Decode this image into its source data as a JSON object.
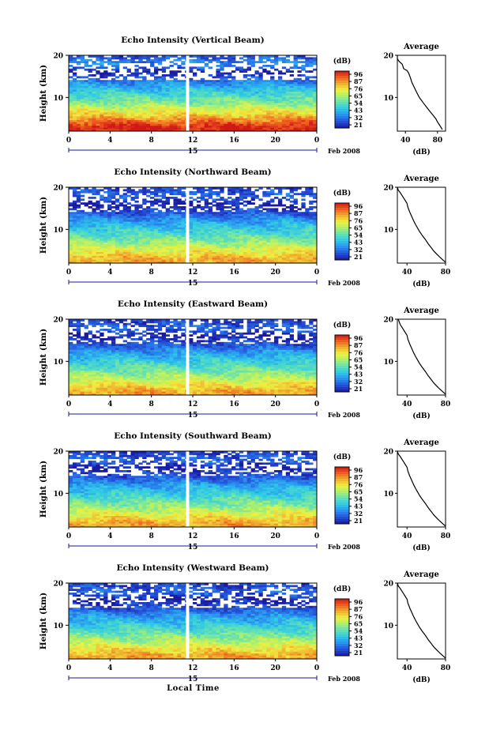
{
  "figure": {
    "date_label": "Feb 2008",
    "day_label": "15",
    "xlabel_bottom": "Local Time",
    "colorbar_unit": "(dB)",
    "colorbar_ticks": [
      "96",
      "87",
      "76",
      "65",
      "54",
      "43",
      "32",
      "21"
    ],
    "colors": {
      "scale": [
        "#1a1aa0",
        "#2450d8",
        "#2a8ef0",
        "#2ec8e8",
        "#5fe0b8",
        "#a8f070",
        "#f0f040",
        "#f0b030",
        "#f06020",
        "#d01818"
      ],
      "axis": "#000000",
      "time_axis_accent": "#1a1a9a"
    }
  },
  "panels": [
    {
      "title": "Echo Intensity (Vertical Beam)",
      "ylabel": "Height (km)",
      "avg_title": "Average",
      "avg_xlabel": "(dB)"
    },
    {
      "title": "Echo Intensity (Northward Beam)",
      "ylabel": "Height (km)",
      "avg_title": "Average",
      "avg_xlabel": "(dB)"
    },
    {
      "title": "Echo Intensity (Eastward Beam)",
      "ylabel": "Height (km)",
      "avg_title": "Average",
      "avg_xlabel": "(dB)"
    },
    {
      "title": "Echo Intensity (Southward Beam)",
      "ylabel": "Height (km)",
      "avg_title": "Average",
      "avg_xlabel": "(dB)"
    },
    {
      "title": "Echo Intensity (Westward Beam)",
      "ylabel": "Height (km)",
      "avg_title": "Average",
      "avg_xlabel": "(dB)"
    }
  ],
  "chart_data": [
    {
      "type": "heatmap",
      "title": "Echo Intensity (Vertical Beam)",
      "xlabel": "",
      "ylabel": "Height (km)",
      "x_ticks": [
        "0",
        "4",
        "8",
        "12",
        "16",
        "20",
        "0"
      ],
      "y_ticks": [
        "10",
        "20"
      ],
      "xlim": [
        0,
        24
      ],
      "ylim": [
        2,
        20
      ],
      "colorbar": {
        "unit": "(dB)",
        "ticks": [
          96,
          87,
          76,
          65,
          54,
          43,
          32,
          21
        ]
      },
      "data_gap_hour": 11.5,
      "profile_by_height": [
        {
          "h": 3,
          "dB": 95
        },
        {
          "h": 6,
          "dB": 75
        },
        {
          "h": 9,
          "dB": 58
        },
        {
          "h": 12,
          "dB": 45
        },
        {
          "h": 14,
          "dB": 35
        },
        {
          "h": 16,
          "dB": 22
        },
        {
          "h": 18,
          "dB": 38
        },
        {
          "h": 20,
          "dB": 28
        }
      ]
    },
    {
      "type": "line",
      "title": "Average",
      "xlabel": "(dB)",
      "ylabel": "",
      "x_ticks": [
        "40",
        "80"
      ],
      "y_ticks": [
        "10",
        "20"
      ],
      "xlim": [
        30,
        90
      ],
      "ylim": [
        2,
        20
      ],
      "series": [
        {
          "x": [
            28,
            30,
            32,
            36,
            38,
            42,
            44,
            46,
            48,
            50,
            52,
            54,
            56,
            58,
            62,
            66,
            70,
            74,
            78,
            80,
            82,
            84,
            86
          ],
          "y": [
            20,
            19.2,
            18.6,
            17.9,
            16.8,
            16.4,
            15.8,
            14.8,
            13.6,
            12.8,
            12.0,
            11.2,
            10.5,
            9.8,
            8.8,
            7.8,
            6.8,
            5.9,
            4.9,
            4.2,
            3.6,
            3.0,
            2.4
          ]
        }
      ]
    },
    {
      "type": "heatmap",
      "title": "Echo Intensity (Northward Beam)",
      "xlabel": "",
      "ylabel": "Height (km)",
      "x_ticks": [
        "0",
        "4",
        "8",
        "12",
        "16",
        "20",
        "0"
      ],
      "y_ticks": [
        "10",
        "20"
      ],
      "xlim": [
        0,
        24
      ],
      "ylim": [
        2,
        20
      ],
      "colorbar": {
        "unit": "(dB)",
        "ticks": [
          96,
          87,
          76,
          65,
          54,
          43,
          32,
          21
        ]
      },
      "data_gap_hour": 11.5,
      "profile_by_height": [
        {
          "h": 3,
          "dB": 80
        },
        {
          "h": 6,
          "dB": 65
        },
        {
          "h": 9,
          "dB": 52
        },
        {
          "h": 12,
          "dB": 40
        },
        {
          "h": 14,
          "dB": 30
        },
        {
          "h": 16,
          "dB": 22
        },
        {
          "h": 18,
          "dB": 32
        },
        {
          "h": 20,
          "dB": 26
        }
      ]
    },
    {
      "type": "line",
      "title": "Average",
      "xlabel": "(dB)",
      "ylabel": "",
      "x_ticks": [
        "40",
        "80"
      ],
      "y_ticks": [
        "10",
        "20"
      ],
      "xlim": [
        30,
        80
      ],
      "ylim": [
        2,
        20
      ],
      "series": [
        {
          "x": [
            30,
            31,
            33,
            35,
            37,
            38,
            40,
            41,
            43,
            45,
            47,
            49,
            51,
            53,
            56,
            59,
            62,
            65,
            68,
            71,
            74,
            77,
            80
          ],
          "y": [
            20,
            19.3,
            18.7,
            18.0,
            17.3,
            16.9,
            16.2,
            15.2,
            14.0,
            13.0,
            12.0,
            11.1,
            10.3,
            9.5,
            8.5,
            7.6,
            6.6,
            5.7,
            4.8,
            4.1,
            3.4,
            2.8,
            2.2
          ]
        }
      ]
    },
    {
      "type": "heatmap",
      "title": "Echo Intensity (Eastward Beam)",
      "xlabel": "",
      "ylabel": "Height (km)",
      "x_ticks": [
        "0",
        "4",
        "8",
        "12",
        "16",
        "20",
        "0"
      ],
      "y_ticks": [
        "10",
        "20"
      ],
      "xlim": [
        0,
        24
      ],
      "ylim": [
        2,
        20
      ],
      "colorbar": {
        "unit": "(dB)",
        "ticks": [
          96,
          87,
          76,
          65,
          54,
          43,
          32,
          21
        ]
      },
      "data_gap_hour": 11.5,
      "profile_by_height": [
        {
          "h": 3,
          "dB": 80
        },
        {
          "h": 6,
          "dB": 65
        },
        {
          "h": 9,
          "dB": 52
        },
        {
          "h": 12,
          "dB": 40
        },
        {
          "h": 14,
          "dB": 30
        },
        {
          "h": 16,
          "dB": 22
        },
        {
          "h": 18,
          "dB": 32
        },
        {
          "h": 20,
          "dB": 26
        }
      ]
    },
    {
      "type": "line",
      "title": "Average",
      "xlabel": "(dB)",
      "ylabel": "",
      "x_ticks": [
        "40",
        "80"
      ],
      "y_ticks": [
        "10",
        "20"
      ],
      "xlim": [
        30,
        80
      ],
      "ylim": [
        2,
        20
      ],
      "series": [
        {
          "x": [
            31,
            32,
            33,
            35,
            37,
            38,
            40,
            41,
            43,
            45,
            47,
            49,
            51,
            53,
            56,
            59,
            62,
            65,
            68,
            71,
            74,
            77,
            80
          ],
          "y": [
            20,
            19.3,
            18.7,
            18.0,
            17.3,
            16.9,
            16.2,
            15.2,
            14.0,
            13.0,
            12.0,
            11.1,
            10.3,
            9.5,
            8.5,
            7.6,
            6.6,
            5.7,
            4.8,
            4.1,
            3.4,
            2.8,
            2.2
          ]
        }
      ]
    },
    {
      "type": "heatmap",
      "title": "Echo Intensity (Southward Beam)",
      "xlabel": "",
      "ylabel": "Height (km)",
      "x_ticks": [
        "0",
        "4",
        "8",
        "12",
        "16",
        "20",
        "0"
      ],
      "y_ticks": [
        "10",
        "20"
      ],
      "xlim": [
        0,
        24
      ],
      "ylim": [
        2,
        20
      ],
      "colorbar": {
        "unit": "(dB)",
        "ticks": [
          96,
          87,
          76,
          65,
          54,
          43,
          32,
          21
        ]
      },
      "data_gap_hour": 11.5,
      "profile_by_height": [
        {
          "h": 3,
          "dB": 80
        },
        {
          "h": 6,
          "dB": 65
        },
        {
          "h": 9,
          "dB": 52
        },
        {
          "h": 12,
          "dB": 40
        },
        {
          "h": 14,
          "dB": 30
        },
        {
          "h": 16,
          "dB": 22
        },
        {
          "h": 18,
          "dB": 32
        },
        {
          "h": 20,
          "dB": 26
        }
      ]
    },
    {
      "type": "line",
      "title": "Average",
      "xlabel": "(dB)",
      "ylabel": "",
      "x_ticks": [
        "40",
        "80"
      ],
      "y_ticks": [
        "10",
        "20"
      ],
      "xlim": [
        30,
        80
      ],
      "ylim": [
        2,
        20
      ],
      "series": [
        {
          "x": [
            30,
            31,
            33,
            35,
            37,
            38,
            40,
            41,
            43,
            45,
            47,
            49,
            51,
            53,
            56,
            59,
            62,
            65,
            68,
            71,
            74,
            77,
            80
          ],
          "y": [
            20,
            19.3,
            18.7,
            18.0,
            17.3,
            16.9,
            16.2,
            15.2,
            14.0,
            13.0,
            12.0,
            11.1,
            10.3,
            9.5,
            8.5,
            7.6,
            6.6,
            5.7,
            4.8,
            4.1,
            3.4,
            2.8,
            2.2
          ]
        }
      ]
    },
    {
      "type": "heatmap",
      "title": "Echo Intensity (Westward Beam)",
      "xlabel": "Local Time",
      "ylabel": "Height (km)",
      "x_ticks": [
        "0",
        "4",
        "8",
        "12",
        "16",
        "20",
        "0"
      ],
      "y_ticks": [
        "10",
        "20"
      ],
      "xlim": [
        0,
        24
      ],
      "ylim": [
        2,
        20
      ],
      "colorbar": {
        "unit": "(dB)",
        "ticks": [
          96,
          87,
          76,
          65,
          54,
          43,
          32,
          21
        ]
      },
      "data_gap_hour": 11.5,
      "profile_by_height": [
        {
          "h": 3,
          "dB": 80
        },
        {
          "h": 6,
          "dB": 65
        },
        {
          "h": 9,
          "dB": 52
        },
        {
          "h": 12,
          "dB": 40
        },
        {
          "h": 14,
          "dB": 30
        },
        {
          "h": 16,
          "dB": 22
        },
        {
          "h": 18,
          "dB": 32
        },
        {
          "h": 20,
          "dB": 26
        }
      ]
    },
    {
      "type": "line",
      "title": "Average",
      "xlabel": "(dB)",
      "ylabel": "",
      "x_ticks": [
        "40",
        "80"
      ],
      "y_ticks": [
        "10",
        "20"
      ],
      "xlim": [
        30,
        80
      ],
      "ylim": [
        2,
        20
      ],
      "series": [
        {
          "x": [
            30,
            31,
            33,
            35,
            37,
            38,
            40,
            41,
            43,
            45,
            47,
            49,
            51,
            53,
            56,
            59,
            62,
            65,
            68,
            71,
            74,
            77,
            80
          ],
          "y": [
            20,
            19.3,
            18.7,
            18.0,
            17.3,
            16.9,
            16.2,
            15.2,
            14.0,
            13.0,
            12.0,
            11.1,
            10.3,
            9.5,
            8.5,
            7.6,
            6.6,
            5.7,
            4.8,
            4.1,
            3.4,
            2.8,
            2.2
          ]
        }
      ]
    }
  ]
}
